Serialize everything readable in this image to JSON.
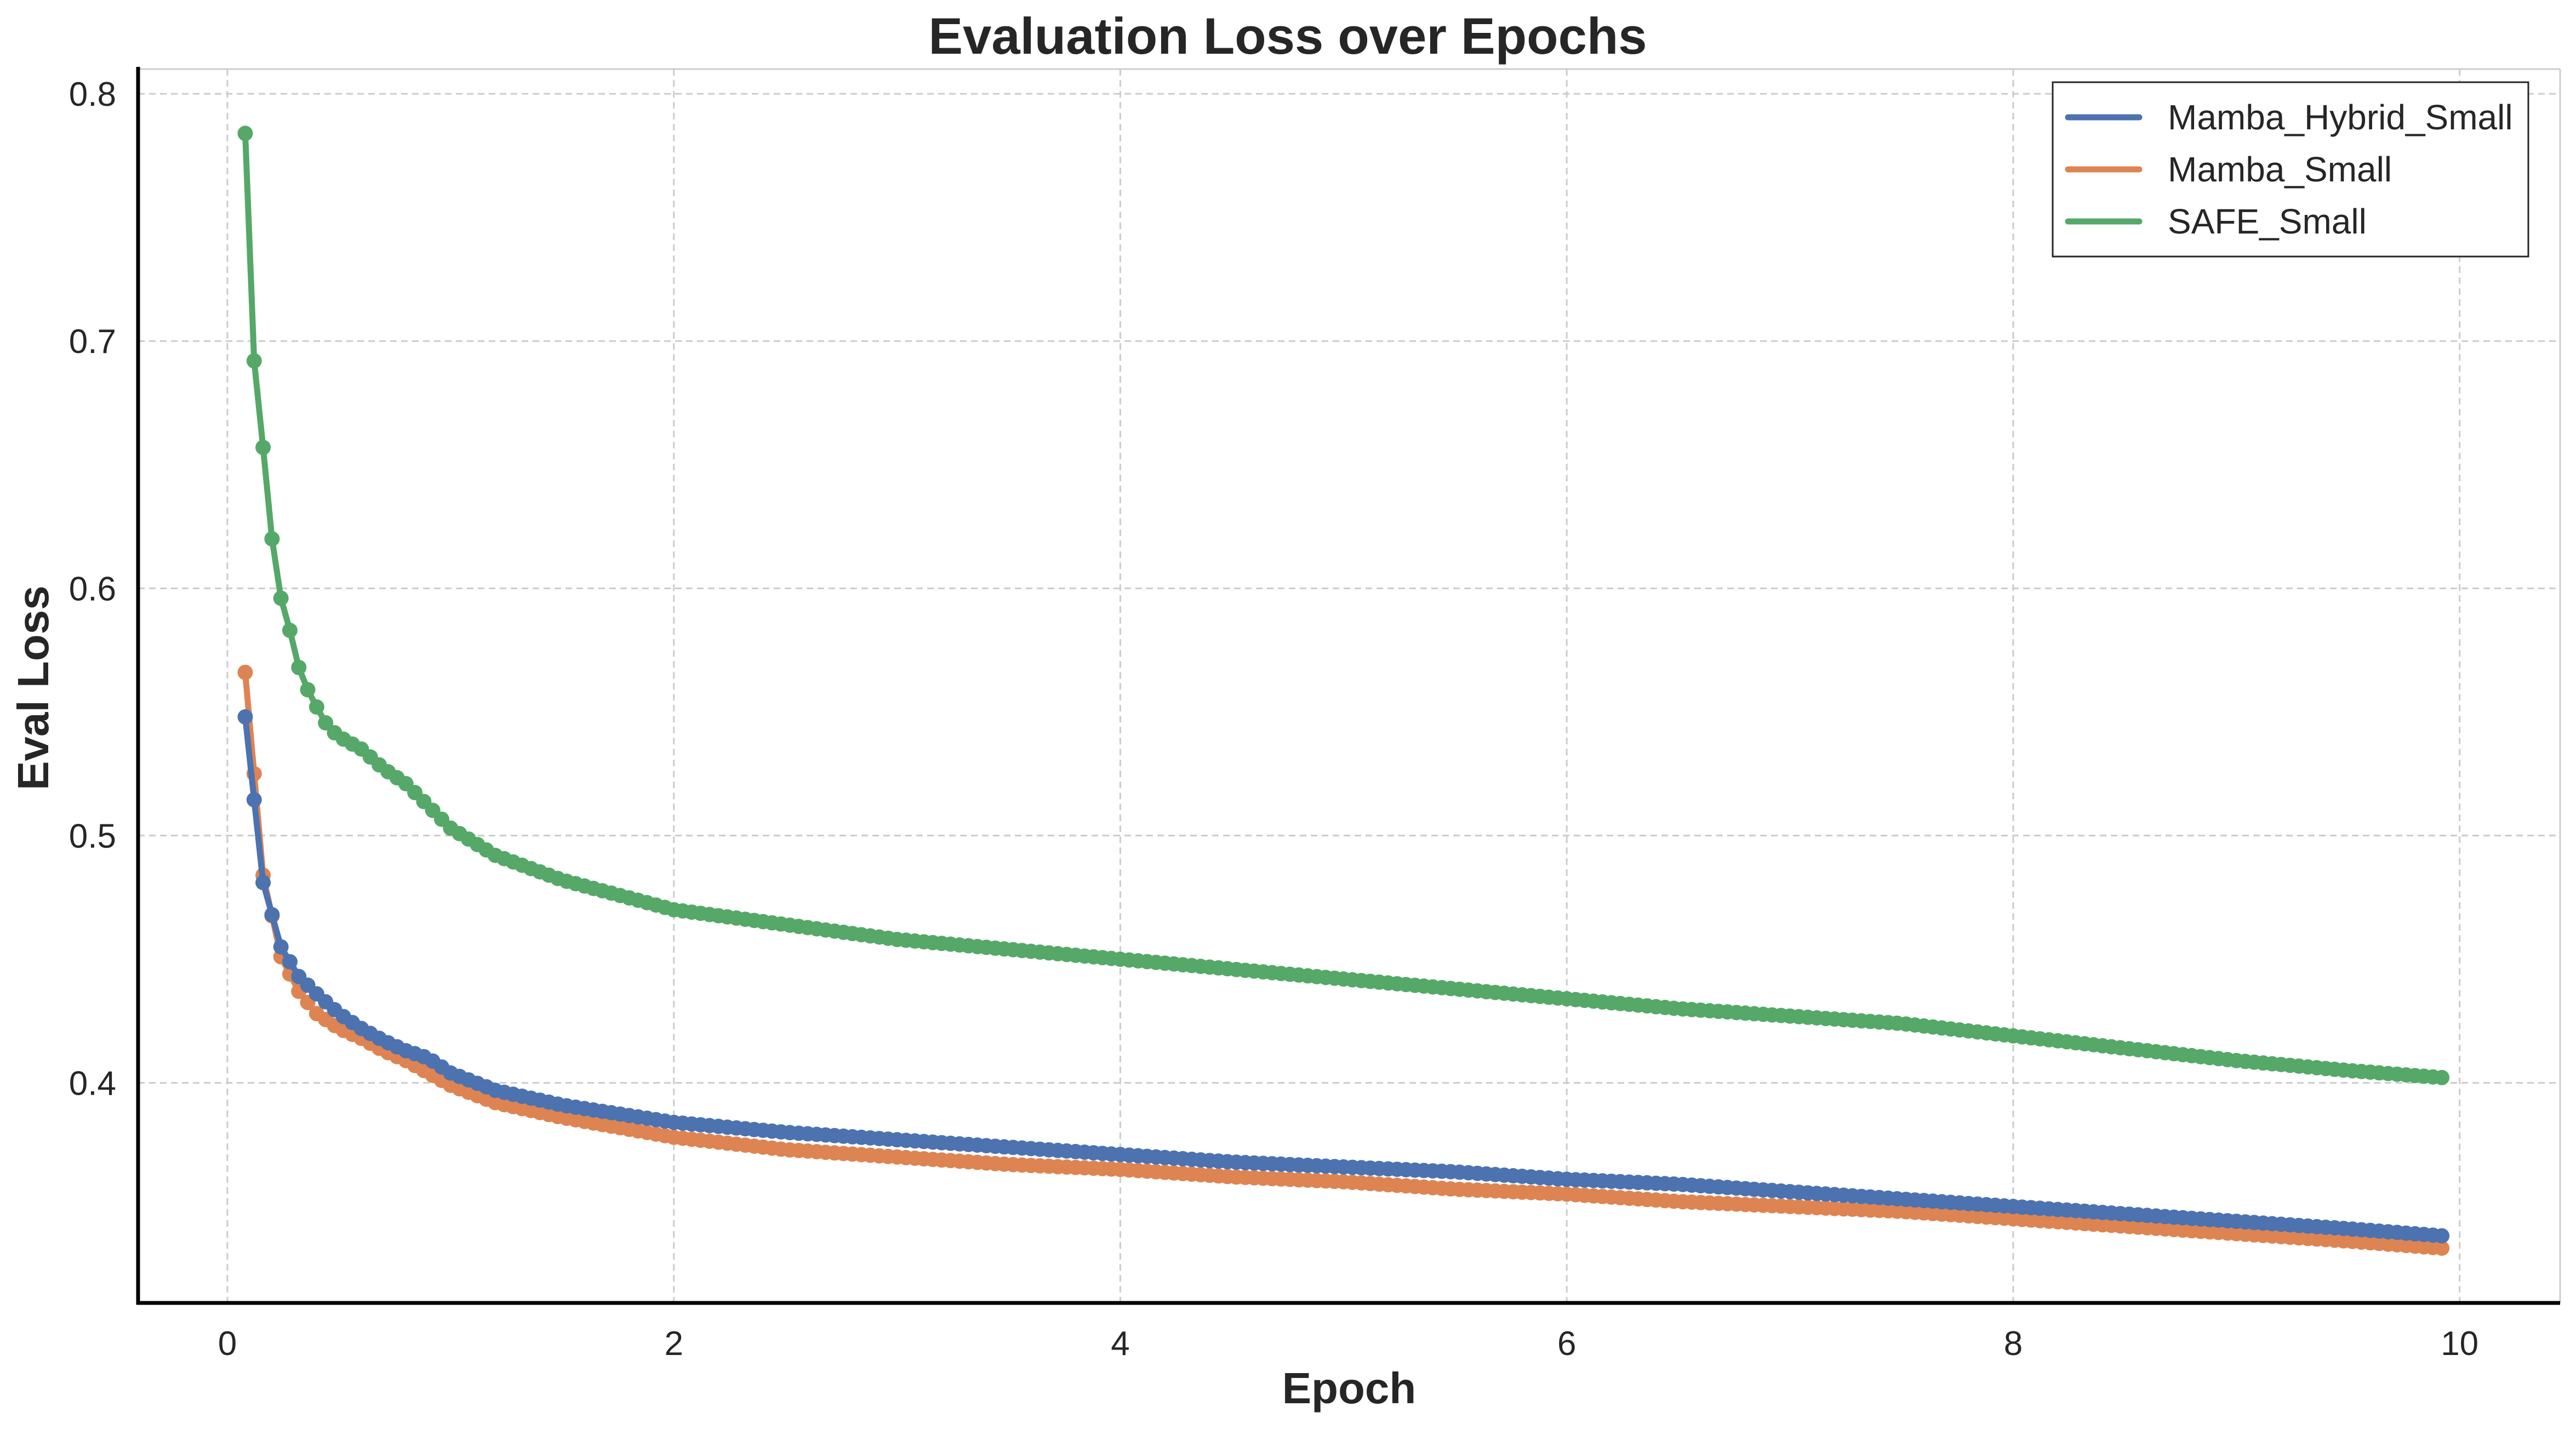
{
  "chart_data": {
    "type": "line",
    "title": "Evaluation Loss over Epochs",
    "xlabel": "Epoch",
    "ylabel": "Eval Loss",
    "xlim": [
      -0.4,
      10.45
    ],
    "ylim": [
      0.311,
      0.81
    ],
    "xticks": [
      0,
      2,
      4,
      6,
      8,
      10
    ],
    "yticks": [
      0.4,
      0.5,
      0.6,
      0.7,
      0.8
    ],
    "xtick_labels": [
      "0",
      "2",
      "4",
      "6",
      "8",
      "10"
    ],
    "ytick_labels": [
      "0.4",
      "0.5",
      "0.6",
      "0.7",
      "0.8"
    ],
    "grid": true,
    "legend_position": "top-right",
    "x_start": 0.08,
    "x_end": 9.94,
    "x_step": 0.04,
    "series": [
      {
        "name": "Mamba_Hybrid_Small",
        "color": "#4c72b0",
        "anchors": [
          [
            0.08,
            0.548
          ],
          [
            0.16,
            0.481
          ],
          [
            0.24,
            0.455
          ],
          [
            0.32,
            0.443
          ],
          [
            0.4,
            0.436
          ],
          [
            0.5,
            0.428
          ],
          [
            0.6,
            0.422
          ],
          [
            0.7,
            0.417
          ],
          [
            0.8,
            0.413
          ],
          [
            0.9,
            0.41
          ],
          [
            1.0,
            0.404
          ],
          [
            1.2,
            0.397
          ],
          [
            1.5,
            0.391
          ],
          [
            2.0,
            0.384
          ],
          [
            2.5,
            0.38
          ],
          [
            3.0,
            0.377
          ],
          [
            3.5,
            0.374
          ],
          [
            4.0,
            0.371
          ],
          [
            4.5,
            0.368
          ],
          [
            5.0,
            0.366
          ],
          [
            5.5,
            0.364
          ],
          [
            6.0,
            0.361
          ],
          [
            6.5,
            0.359
          ],
          [
            7.0,
            0.356
          ],
          [
            7.5,
            0.353
          ],
          [
            8.0,
            0.35
          ],
          [
            8.5,
            0.347
          ],
          [
            9.0,
            0.344
          ],
          [
            9.5,
            0.341
          ],
          [
            9.94,
            0.338
          ]
        ]
      },
      {
        "name": "Mamba_Small",
        "color": "#dd8452",
        "anchors": [
          [
            0.08,
            0.566
          ],
          [
            0.16,
            0.484
          ],
          [
            0.24,
            0.451
          ],
          [
            0.32,
            0.437
          ],
          [
            0.4,
            0.428
          ],
          [
            0.5,
            0.422
          ],
          [
            0.6,
            0.418
          ],
          [
            0.7,
            0.413
          ],
          [
            0.8,
            0.409
          ],
          [
            0.9,
            0.404
          ],
          [
            1.0,
            0.399
          ],
          [
            1.2,
            0.392
          ],
          [
            1.5,
            0.386
          ],
          [
            2.0,
            0.378
          ],
          [
            2.5,
            0.373
          ],
          [
            3.0,
            0.37
          ],
          [
            3.5,
            0.367
          ],
          [
            4.0,
            0.365
          ],
          [
            4.5,
            0.362
          ],
          [
            5.0,
            0.36
          ],
          [
            5.5,
            0.357
          ],
          [
            6.0,
            0.355
          ],
          [
            6.5,
            0.352
          ],
          [
            7.0,
            0.35
          ],
          [
            7.5,
            0.348
          ],
          [
            8.0,
            0.345
          ],
          [
            8.5,
            0.342
          ],
          [
            9.0,
            0.339
          ],
          [
            9.5,
            0.336
          ],
          [
            9.94,
            0.333
          ]
        ]
      },
      {
        "name": "SAFE_Small",
        "color": "#55a868",
        "anchors": [
          [
            0.08,
            0.784
          ],
          [
            0.12,
            0.692
          ],
          [
            0.16,
            0.657
          ],
          [
            0.2,
            0.62
          ],
          [
            0.24,
            0.596
          ],
          [
            0.28,
            0.583
          ],
          [
            0.32,
            0.568
          ],
          [
            0.36,
            0.559
          ],
          [
            0.4,
            0.552
          ],
          [
            0.45,
            0.544
          ],
          [
            0.5,
            0.54
          ],
          [
            0.6,
            0.535
          ],
          [
            0.7,
            0.527
          ],
          [
            0.8,
            0.521
          ],
          [
            0.9,
            0.512
          ],
          [
            1.0,
            0.503
          ],
          [
            1.2,
            0.492
          ],
          [
            1.5,
            0.482
          ],
          [
            2.0,
            0.47
          ],
          [
            2.5,
            0.464
          ],
          [
            3.0,
            0.458
          ],
          [
            3.5,
            0.454
          ],
          [
            4.0,
            0.45
          ],
          [
            4.5,
            0.446
          ],
          [
            5.0,
            0.442
          ],
          [
            5.5,
            0.438
          ],
          [
            6.0,
            0.434
          ],
          [
            6.5,
            0.43
          ],
          [
            7.0,
            0.427
          ],
          [
            7.5,
            0.424
          ],
          [
            8.0,
            0.419
          ],
          [
            8.5,
            0.414
          ],
          [
            9.0,
            0.409
          ],
          [
            9.5,
            0.405
          ],
          [
            9.94,
            0.402
          ]
        ]
      }
    ]
  }
}
